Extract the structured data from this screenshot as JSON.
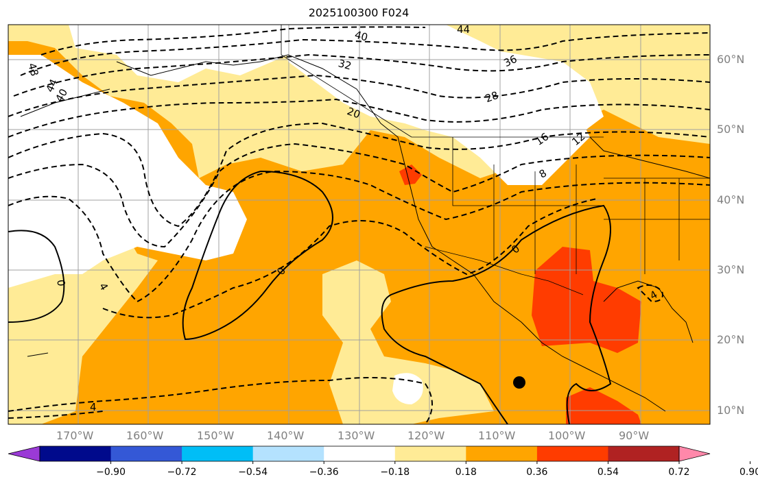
{
  "title": "2025100300 F024",
  "lat_labels": [
    "60°N",
    "50°N",
    "40°N",
    "30°N",
    "20°N",
    "10°N"
  ],
  "lon_labels": [
    "170°W",
    "160°W",
    "150°W",
    "140°W",
    "130°W",
    "120°W",
    "110°W",
    "100°W",
    "90°W"
  ],
  "colorbar": {
    "colors": [
      "#9a3ad6",
      "#000a8c",
      "#3458d6",
      "#00bef6",
      "#b4e2fe",
      "#ffffff",
      "#ffeb96",
      "#ffa500",
      "#ff3c00",
      "#b02222",
      "#ff88aa"
    ],
    "tick_labels": [
      "−0.90",
      "−0.72",
      "−0.54",
      "−0.36",
      "−0.18",
      "0.18",
      "0.36",
      "0.54",
      "0.72",
      "0.90"
    ]
  },
  "contour_labels": [
    "40",
    "44",
    "36",
    "48",
    "44",
    "40",
    "32",
    "28",
    "20",
    "16",
    "12",
    "8",
    "0",
    "0",
    "0",
    "4",
    "4",
    "4"
  ],
  "colors": {
    "land_white": "#ffffff",
    "shade_light": "#ffeb96",
    "shade_orange": "#ffa500",
    "shade_red": "#ff3c00",
    "grid": "#a0a0a0"
  }
}
